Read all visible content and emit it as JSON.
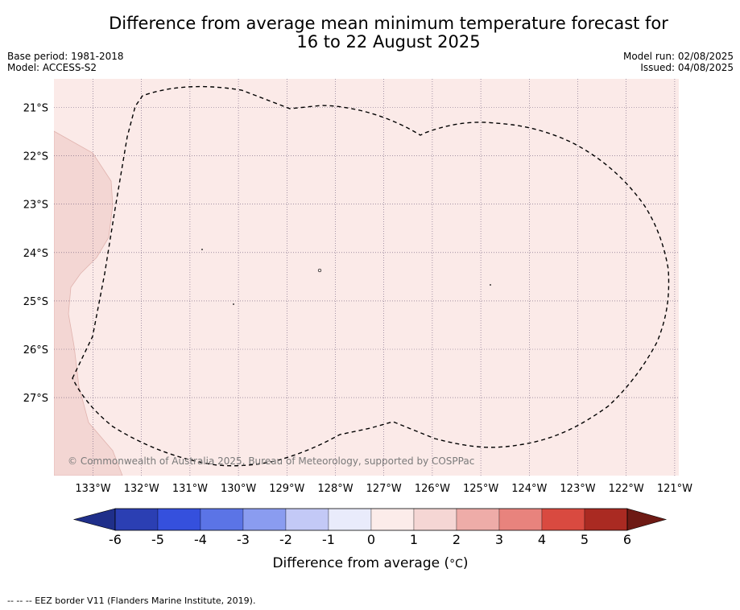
{
  "header": {
    "title_line1": "Difference from average mean minimum temperature forecast for",
    "title_line2": "16 to 22 August 2025",
    "base_period": "Base period: 1981-2018",
    "model": "Model: ACCESS-S2",
    "model_run": "Model run: 02/08/2025",
    "issued": "Issued: 04/08/2025"
  },
  "map": {
    "background_color": "#fbeae8",
    "land_color": "#f3d6d3",
    "copyright": "© Commonwealth of Australia 2025, Bureau of Meteorology, supported by COSPPac",
    "lon_labels": [
      "133°W",
      "132°W",
      "131°W",
      "130°W",
      "129°W",
      "128°W",
      "127°W",
      "126°W",
      "125°W",
      "124°W",
      "123°W",
      "122°W",
      "121°W"
    ],
    "lat_labels": [
      "21°S",
      "22°S",
      "23°S",
      "24°S",
      "25°S",
      "26°S",
      "27°S"
    ]
  },
  "colorbar": {
    "colors": [
      "#1f2f8a",
      "#2b3fb3",
      "#3550dd",
      "#5b74e6",
      "#8a9cf0",
      "#c3c9f6",
      "#e9ebfb",
      "#fcecea",
      "#f5d6d4",
      "#eeaca8",
      "#e8837d",
      "#d94a40",
      "#aa2a22",
      "#6e1a14"
    ],
    "tick_labels": [
      "-6",
      "-5",
      "-4",
      "-3",
      "-2",
      "-1",
      "0",
      "1",
      "2",
      "3",
      "4",
      "5",
      "6"
    ],
    "label": "Difference from average (",
    "label_unit": "°C",
    "label_close": ")"
  },
  "footnote": "--  --  -- EEZ border V11 (Flanders Marine Institute, 2019)."
}
